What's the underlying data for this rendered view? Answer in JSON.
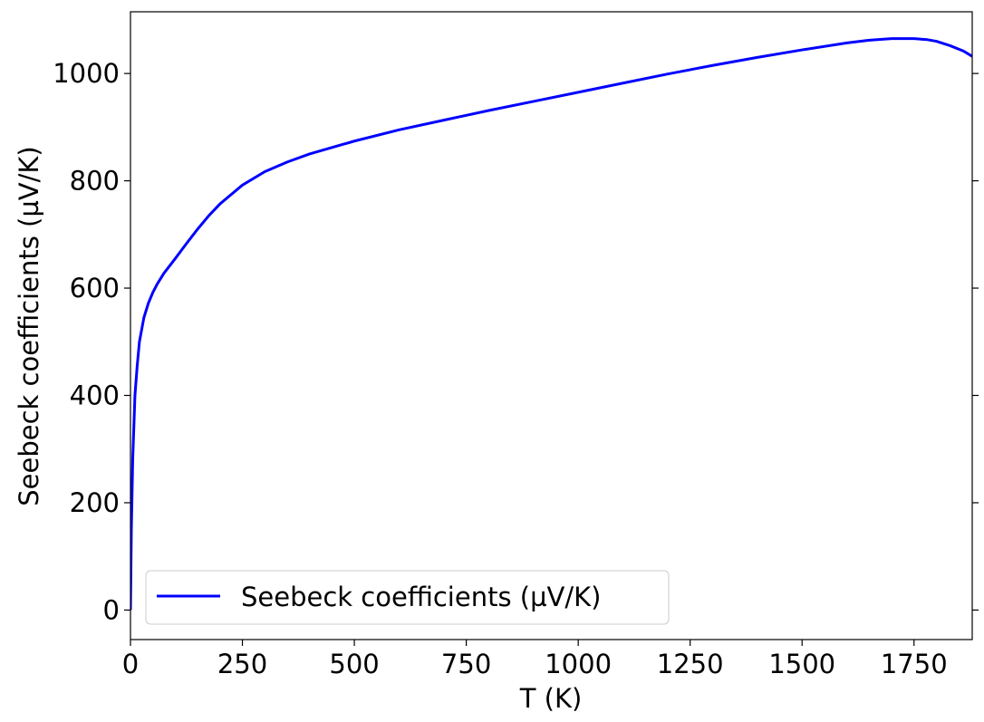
{
  "chart_data": {
    "type": "line",
    "title": "",
    "xlabel": "T (K)",
    "ylabel": "Seebeck coefficients (µV/K)",
    "xlim": [
      0,
      1880
    ],
    "ylim": [
      -55,
      1115
    ],
    "xticks": [
      0,
      250,
      500,
      750,
      1000,
      1250,
      1500,
      1750
    ],
    "xtick_labels": [
      "0",
      "250",
      "500",
      "750",
      "1000",
      "1250",
      "1500",
      "1750"
    ],
    "yticks": [
      0,
      200,
      400,
      600,
      800,
      1000
    ],
    "ytick_labels": [
      "0",
      "200",
      "400",
      "600",
      "800",
      "1000"
    ],
    "grid": false,
    "legend": {
      "position": "lower-left",
      "entries": [
        "Seebeck coefficients (µV/K)"
      ]
    },
    "series": [
      {
        "name": "Seebeck coefficients (µV/K)",
        "color": "#0000ff",
        "x": [
          0,
          2,
          5,
          10,
          15,
          20,
          30,
          40,
          50,
          60,
          75,
          100,
          125,
          150,
          175,
          200,
          250,
          300,
          350,
          400,
          500,
          600,
          700,
          800,
          900,
          1000,
          1100,
          1200,
          1300,
          1400,
          1500,
          1600,
          1650,
          1700,
          1750,
          1780,
          1800,
          1830,
          1860,
          1880
        ],
        "values": [
          0,
          150,
          280,
          400,
          455,
          500,
          545,
          572,
          592,
          608,
          628,
          655,
          683,
          710,
          735,
          757,
          792,
          817,
          835,
          850,
          874,
          895,
          913,
          931,
          948,
          965,
          982,
          999,
          1015,
          1030,
          1044,
          1057,
          1062,
          1065,
          1065,
          1063,
          1060,
          1052,
          1042,
          1032
        ]
      }
    ]
  }
}
